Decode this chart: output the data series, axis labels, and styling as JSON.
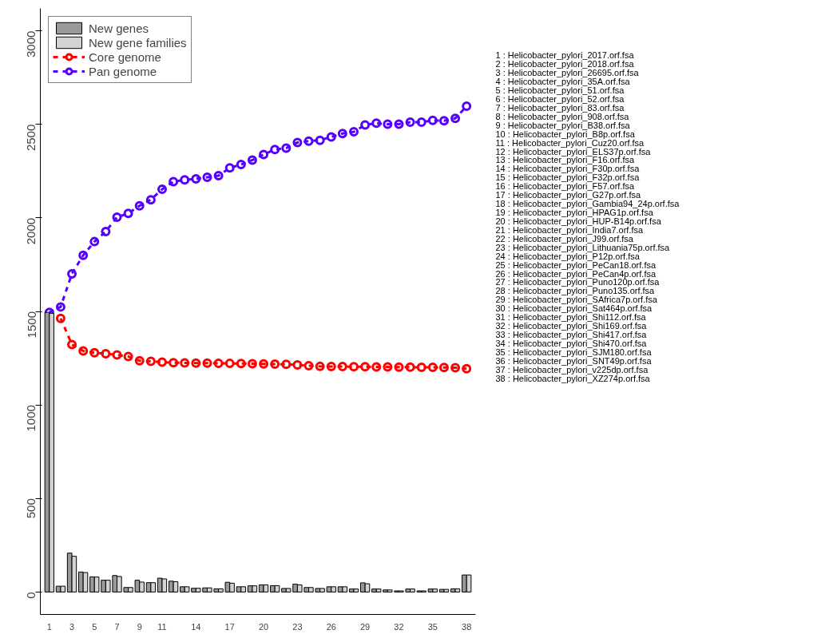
{
  "chart_data": {
    "type": "bar",
    "x": [
      1,
      2,
      3,
      4,
      5,
      6,
      7,
      8,
      9,
      10,
      11,
      12,
      13,
      14,
      15,
      16,
      17,
      18,
      19,
      20,
      21,
      22,
      23,
      24,
      25,
      26,
      27,
      28,
      29,
      30,
      31,
      32,
      33,
      34,
      35,
      36,
      37,
      38
    ],
    "series": [
      {
        "name": "New genes",
        "color": "#999999",
        "values": [
          1495,
          31,
          208,
          107,
          81,
          63,
          88,
          24,
          63,
          50,
          74,
          58,
          28,
          20,
          22,
          17,
          52,
          28,
          33,
          38,
          34,
          19,
          42,
          24,
          19,
          28,
          28,
          16,
          49,
          16,
          11,
          6,
          16,
          6,
          16,
          14,
          17,
          91
        ]
      },
      {
        "name": "New gene families",
        "color": "#d3d3d3",
        "values": [
          1490,
          31,
          191,
          104,
          80,
          63,
          83,
          24,
          53,
          50,
          70,
          55,
          28,
          20,
          22,
          17,
          47,
          28,
          33,
          38,
          34,
          19,
          38,
          24,
          19,
          28,
          28,
          16,
          44,
          16,
          11,
          6,
          16,
          6,
          16,
          14,
          17,
          91
        ]
      },
      {
        "name": "Core genome",
        "type": "line",
        "color": "#ff0000",
        "values": [
          null,
          1463,
          1323,
          1289,
          1279,
          1274,
          1267,
          1259,
          1236,
          1233,
          1229,
          1226,
          1225,
          1224,
          1224,
          1223,
          1222,
          1221,
          1220,
          1219,
          1218,
          1217,
          1214,
          1210,
          1206,
          1205,
          1205,
          1204,
          1204,
          1203,
          1203,
          1202,
          1202,
          1201,
          1201,
          1200,
          1199,
          1194
        ]
      },
      {
        "name": "Pan genome",
        "type": "line",
        "color": "#5500ff",
        "values": [
          1495,
          1524,
          1701,
          1800,
          1873,
          1927,
          2004,
          2024,
          2065,
          2097,
          2153,
          2194,
          2203,
          2209,
          2217,
          2226,
          2267,
          2285,
          2309,
          2339,
          2365,
          2373,
          2403,
          2410,
          2415,
          2433,
          2451,
          2460,
          2497,
          2506,
          2501,
          2501,
          2512,
          2512,
          2521,
          2519,
          2532,
          2597
        ]
      }
    ],
    "xlim": [
      0.2,
      38.8
    ],
    "xticks": [
      1,
      3,
      5,
      7,
      9,
      11,
      14,
      17,
      20,
      23,
      26,
      29,
      32,
      35,
      38
    ],
    "ylim": [
      -120,
      3120
    ],
    "yticks": [
      0,
      500,
      1000,
      1500,
      2000,
      2500,
      3000
    ],
    "marker": "circle",
    "line_style": "dashed",
    "legend": "top left",
    "grid": false,
    "annotations": [
      "1 :  Helicobacter_pylori_2017.orf.fsa",
      "2 :  Helicobacter_pylori_2018.orf.fsa",
      "3 :  Helicobacter_pylori_26695.orf.fsa",
      "4 :  Helicobacter_pylori_35A.orf.fsa",
      "5 :  Helicobacter_pylori_51.orf.fsa",
      "6 :  Helicobacter_pylori_52.orf.fsa",
      "7 :  Helicobacter_pylori_83.orf.fsa",
      "8 :  Helicobacter_pylori_908.orf.fsa",
      "9 :  Helicobacter_pylori_B38.orf.fsa",
      "10 :  Helicobacter_pylori_B8p.orf.fsa",
      "11 :  Helicobacter_pylori_Cuz20.orf.fsa",
      "12 :  Helicobacter_pylori_ELS37p.orf.fsa",
      "13 :  Helicobacter_pylori_F16.orf.fsa",
      "14 :  Helicobacter_pylori_F30p.orf.fsa",
      "15 :  Helicobacter_pylori_F32p.orf.fsa",
      "16 :  Helicobacter_pylori_F57.orf.fsa",
      "17 :  Helicobacter_pylori_G27p.orf.fsa",
      "18 :  Helicobacter_pylori_Gambia94_24p.orf.fsa",
      "19 :  Helicobacter_pylori_HPAG1p.orf.fsa",
      "20 :  Helicobacter_pylori_HUP-B14p.orf.fsa",
      "21 :  Helicobacter_pylori_India7.orf.fsa",
      "22 :  Helicobacter_pylori_J99.orf.fsa",
      "23 :  Helicobacter_pylori_Lithuania75p.orf.fsa",
      "24 :  Helicobacter_pylori_P12p.orf.fsa",
      "25 :  Helicobacter_pylori_PeCan18.orf.fsa",
      "26 :  Helicobacter_pylori_PeCan4p.orf.fsa",
      "27 :  Helicobacter_pylori_Puno120p.orf.fsa",
      "28 :  Helicobacter_pylori_Puno135.orf.fsa",
      "29 :  Helicobacter_pylori_SAfrica7p.orf.fsa",
      "30 :  Helicobacter_pylori_Sat464p.orf.fsa",
      "31 :  Helicobacter_pylori_Shi112.orf.fsa",
      "32 :  Helicobacter_pylori_Shi169.orf.fsa",
      "33 :  Helicobacter_pylori_Shi417.orf.fsa",
      "34 :  Helicobacter_pylori_Shi470.orf.fsa",
      "35 :  Helicobacter_pylori_SJM180.orf.fsa",
      "36 :  Helicobacter_pylori_SNT49p.orf.fsa",
      "37 :  Helicobacter_pylori_v225dp.orf.fsa",
      "38 :  Helicobacter_pylori_XZ274p.orf.fsa"
    ]
  }
}
